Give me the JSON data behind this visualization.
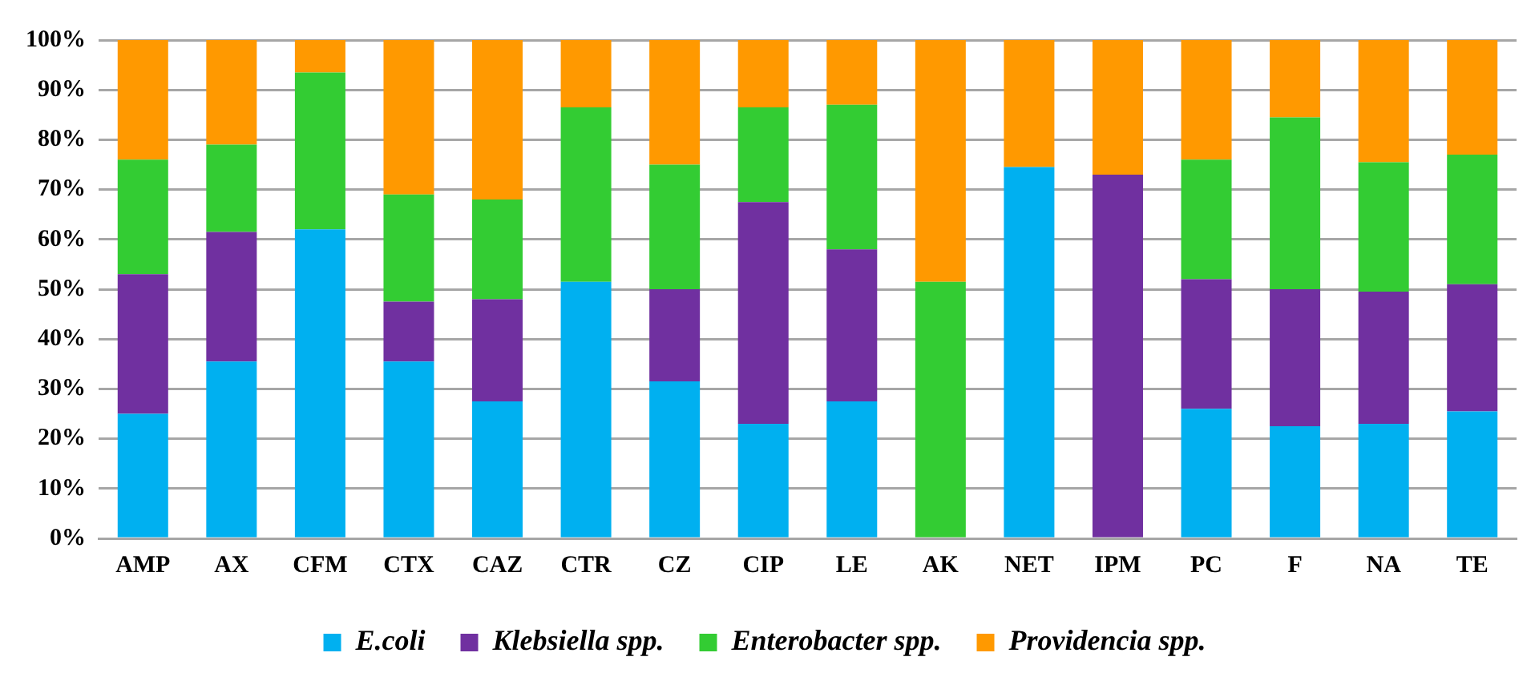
{
  "chart_data": {
    "type": "bar",
    "stacked": true,
    "categories": [
      "AMP",
      "AX",
      "CFM",
      "CTX",
      "CAZ",
      "CTR",
      "CZ",
      "CIP",
      "LE",
      "AK",
      "NET",
      "IPM",
      "PC",
      "F",
      "NA",
      "TE"
    ],
    "series": [
      {
        "name": "E.coli",
        "color": "#00b0f0",
        "values": [
          25,
          35.5,
          62,
          35.5,
          27.5,
          51.5,
          31.5,
          23,
          27.5,
          0,
          74.5,
          0,
          26,
          22.5,
          23,
          25.5
        ]
      },
      {
        "name": "Klebsiella spp.",
        "color": "#7030a0",
        "values": [
          28,
          26,
          0,
          12,
          20.5,
          0,
          18.5,
          44.5,
          30.5,
          0,
          0,
          73,
          26,
          27.5,
          26.5,
          25.5
        ]
      },
      {
        "name": "Enterobacter spp.",
        "color": "#33cc33",
        "values": [
          23,
          17.5,
          31.5,
          21.5,
          20,
          35,
          25,
          19,
          29,
          51.5,
          0,
          0,
          24,
          34.5,
          26,
          26
        ]
      },
      {
        "name": "Providencia spp.",
        "color": "#ff9900",
        "values": [
          24,
          21,
          6.5,
          31,
          32,
          13.5,
          25,
          13.5,
          13,
          48.5,
          25.5,
          27,
          24,
          15.5,
          24.5,
          23
        ]
      }
    ],
    "ylim": [
      0,
      100
    ],
    "yticks": [
      {
        "value": 0,
        "label": "0%"
      },
      {
        "value": 10,
        "label": "10%"
      },
      {
        "value": 20,
        "label": "20%"
      },
      {
        "value": 30,
        "label": "30%"
      },
      {
        "value": 40,
        "label": "40%"
      },
      {
        "value": 50,
        "label": "50%"
      },
      {
        "value": 60,
        "label": "60%"
      },
      {
        "value": 70,
        "label": "70%"
      },
      {
        "value": 80,
        "label": "80%"
      },
      {
        "value": 90,
        "label": "90%"
      },
      {
        "value": 100,
        "label": "100%"
      }
    ],
    "grid": "y",
    "legend": "bottom"
  }
}
